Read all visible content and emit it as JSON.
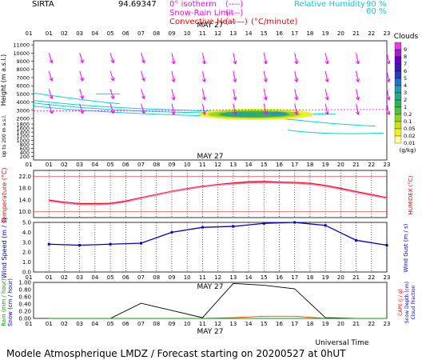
{
  "header": {
    "station": "SIRTA",
    "station_code": "94.69347",
    "legend_lines": [
      {
        "label": "0° isotherm",
        "sample": "(----)",
        "color": "#ff00ff"
      },
      {
        "label": "Snow-Rain Limit",
        "sample": "(----)",
        "color": "#ff00ff"
      },
      {
        "label": "Convective Heat",
        "sample": "(——)",
        "unit": "(°C/minute)",
        "color": "#ff0000"
      }
    ],
    "humidity": {
      "label": "Relative Humidity",
      "values": [
        "90 %",
        "60 %"
      ],
      "color": "#00d0d0"
    }
  },
  "hours": [
    "01",
    "02",
    "03",
    "04",
    "05",
    "06",
    "07",
    "08",
    "09",
    "10",
    "11",
    "12",
    "13",
    "14",
    "15",
    "16",
    "17",
    "18",
    "19",
    "20",
    "21",
    "22",
    "23"
  ],
  "day_label": "MAY 27",
  "footer": {
    "time_axis": "Universal Time",
    "model_line": "Modele Atmospherique LMDZ / Forecast starting on 20200527 at 0hUT"
  },
  "chart_data": [
    {
      "type": "heatmap",
      "title": "",
      "ylabel": "Height (m a.s.l.)",
      "ylabel_low": "Up to 200 m a.s.l.",
      "yticks": [
        "11000",
        "10000",
        "9000",
        "8000",
        "7000",
        "6000",
        "5000",
        "4000",
        "3000",
        "2000",
        "1800",
        "1600",
        "1400",
        "1200",
        "1000",
        "800",
        "600",
        "400",
        "200"
      ],
      "ytick_values": [
        11000,
        10000,
        9000,
        8000,
        7000,
        6000,
        5000,
        4000,
        3000,
        2000,
        1800,
        1600,
        1400,
        1200,
        1000,
        800,
        600,
        400,
        200
      ],
      "colorbar": {
        "title": "Clouds",
        "unit": "(g/kg)",
        "levels": [
          "9",
          "8",
          "7",
          "6",
          "5",
          "4",
          "3",
          "2",
          "1",
          "0.2",
          "0.1",
          "0.05",
          "0.02",
          "0.01"
        ],
        "colors": [
          "#e040e0",
          "#a020c0",
          "#6a00c8",
          "#3c1ca8",
          "#2a3cb4",
          "#2870c0",
          "#2898b0",
          "#28a888",
          "#30b060",
          "#58c040",
          "#98d030",
          "#c8e020",
          "#f0f028",
          "#ffffa0"
        ]
      },
      "isotherm_height": 2900,
      "wind_barbs": [
        {
          "hour": 1,
          "height": 9800
        },
        {
          "hour": 1,
          "height": 7400
        },
        {
          "hour": 1,
          "height": 5400
        }
      ],
      "humidity_contours": [
        "90",
        "60"
      ]
    },
    {
      "type": "line",
      "ylabel": "Temperature (°C)",
      "ylabel_right": "HUMIDEX (°C)",
      "ylim": [
        8,
        24
      ],
      "yticks": [
        10.0,
        14.0,
        18.0,
        22.0
      ],
      "x": [
        1,
        2,
        3,
        4,
        5,
        6,
        7,
        8,
        9,
        10,
        11,
        12,
        13,
        14,
        15,
        16,
        17,
        18,
        19,
        20,
        21,
        22,
        23
      ],
      "series": [
        {
          "values": [
            13.9,
            13.2,
            12.7,
            12.7,
            12.8,
            13.6,
            14.7,
            15.8,
            16.9,
            17.8,
            18.6,
            19.2,
            19.7,
            20.1,
            20.2,
            20.0,
            19.9,
            19.6,
            18.9,
            17.9,
            16.8,
            15.8,
            14.7
          ],
          "color": "#ff0000"
        },
        {
          "values": [
            13.6,
            12.9,
            12.4,
            12.4,
            12.5,
            13.3,
            14.5,
            15.6,
            16.7,
            17.6,
            18.4,
            19.0,
            19.4,
            19.7,
            19.8,
            19.7,
            19.6,
            19.3,
            18.6,
            17.6,
            16.5,
            15.5,
            14.5
          ],
          "color": "#ff80c0"
        }
      ]
    },
    {
      "type": "line",
      "ylabel": "Wind Speed (m / s)",
      "ylabel_right": "Wind Gust (m / s)",
      "ylim": [
        0,
        5
      ],
      "yticks": [
        0.0,
        1.0,
        2.0,
        3.0,
        4.0,
        5.0
      ],
      "x": [
        1,
        3,
        5,
        7,
        9,
        11,
        13,
        15,
        17,
        19,
        21,
        23
      ],
      "series": [
        {
          "values": [
            2.8,
            2.7,
            2.8,
            2.9,
            4.0,
            4.5,
            4.6,
            4.9,
            5.0,
            4.7,
            3.2,
            2.7
          ],
          "color": "#0000d0"
        }
      ]
    },
    {
      "type": "line",
      "ylabel": "Rain (mm / hour)",
      "ylabel_2": "Snow (cm / hour)",
      "ylabel_right": "CAPE (J / g)",
      "ylabel_right_2": "Snow Depth (cm)",
      "ylabel_right_3": "Cloud Fraction",
      "ylim": [
        0,
        1.0
      ],
      "yticks": [
        0.0,
        0.2,
        0.4,
        0.6,
        0.8,
        1.0
      ],
      "x": [
        1,
        3,
        5,
        7,
        9,
        11,
        13,
        15,
        17,
        19,
        21,
        23
      ],
      "series": [
        {
          "values": [
            0.0,
            0.0,
            0.0,
            0.42,
            0.22,
            0.02,
            0.97,
            0.92,
            0.82,
            0.02,
            0.0,
            0.0
          ],
          "color": "#000000"
        },
        {
          "values": [
            0.0,
            0.0,
            0.0,
            0.0,
            0.0,
            0.0,
            0.02,
            0.06,
            0.06,
            0.0,
            0.0,
            0.0
          ],
          "color": "#ff4000"
        },
        {
          "values": [
            0.0,
            0.0,
            0.0,
            0.0,
            0.0,
            0.0,
            0.0,
            0.0,
            0.0,
            0.0,
            0.0,
            0.0
          ],
          "color": "#00a000"
        }
      ]
    }
  ]
}
